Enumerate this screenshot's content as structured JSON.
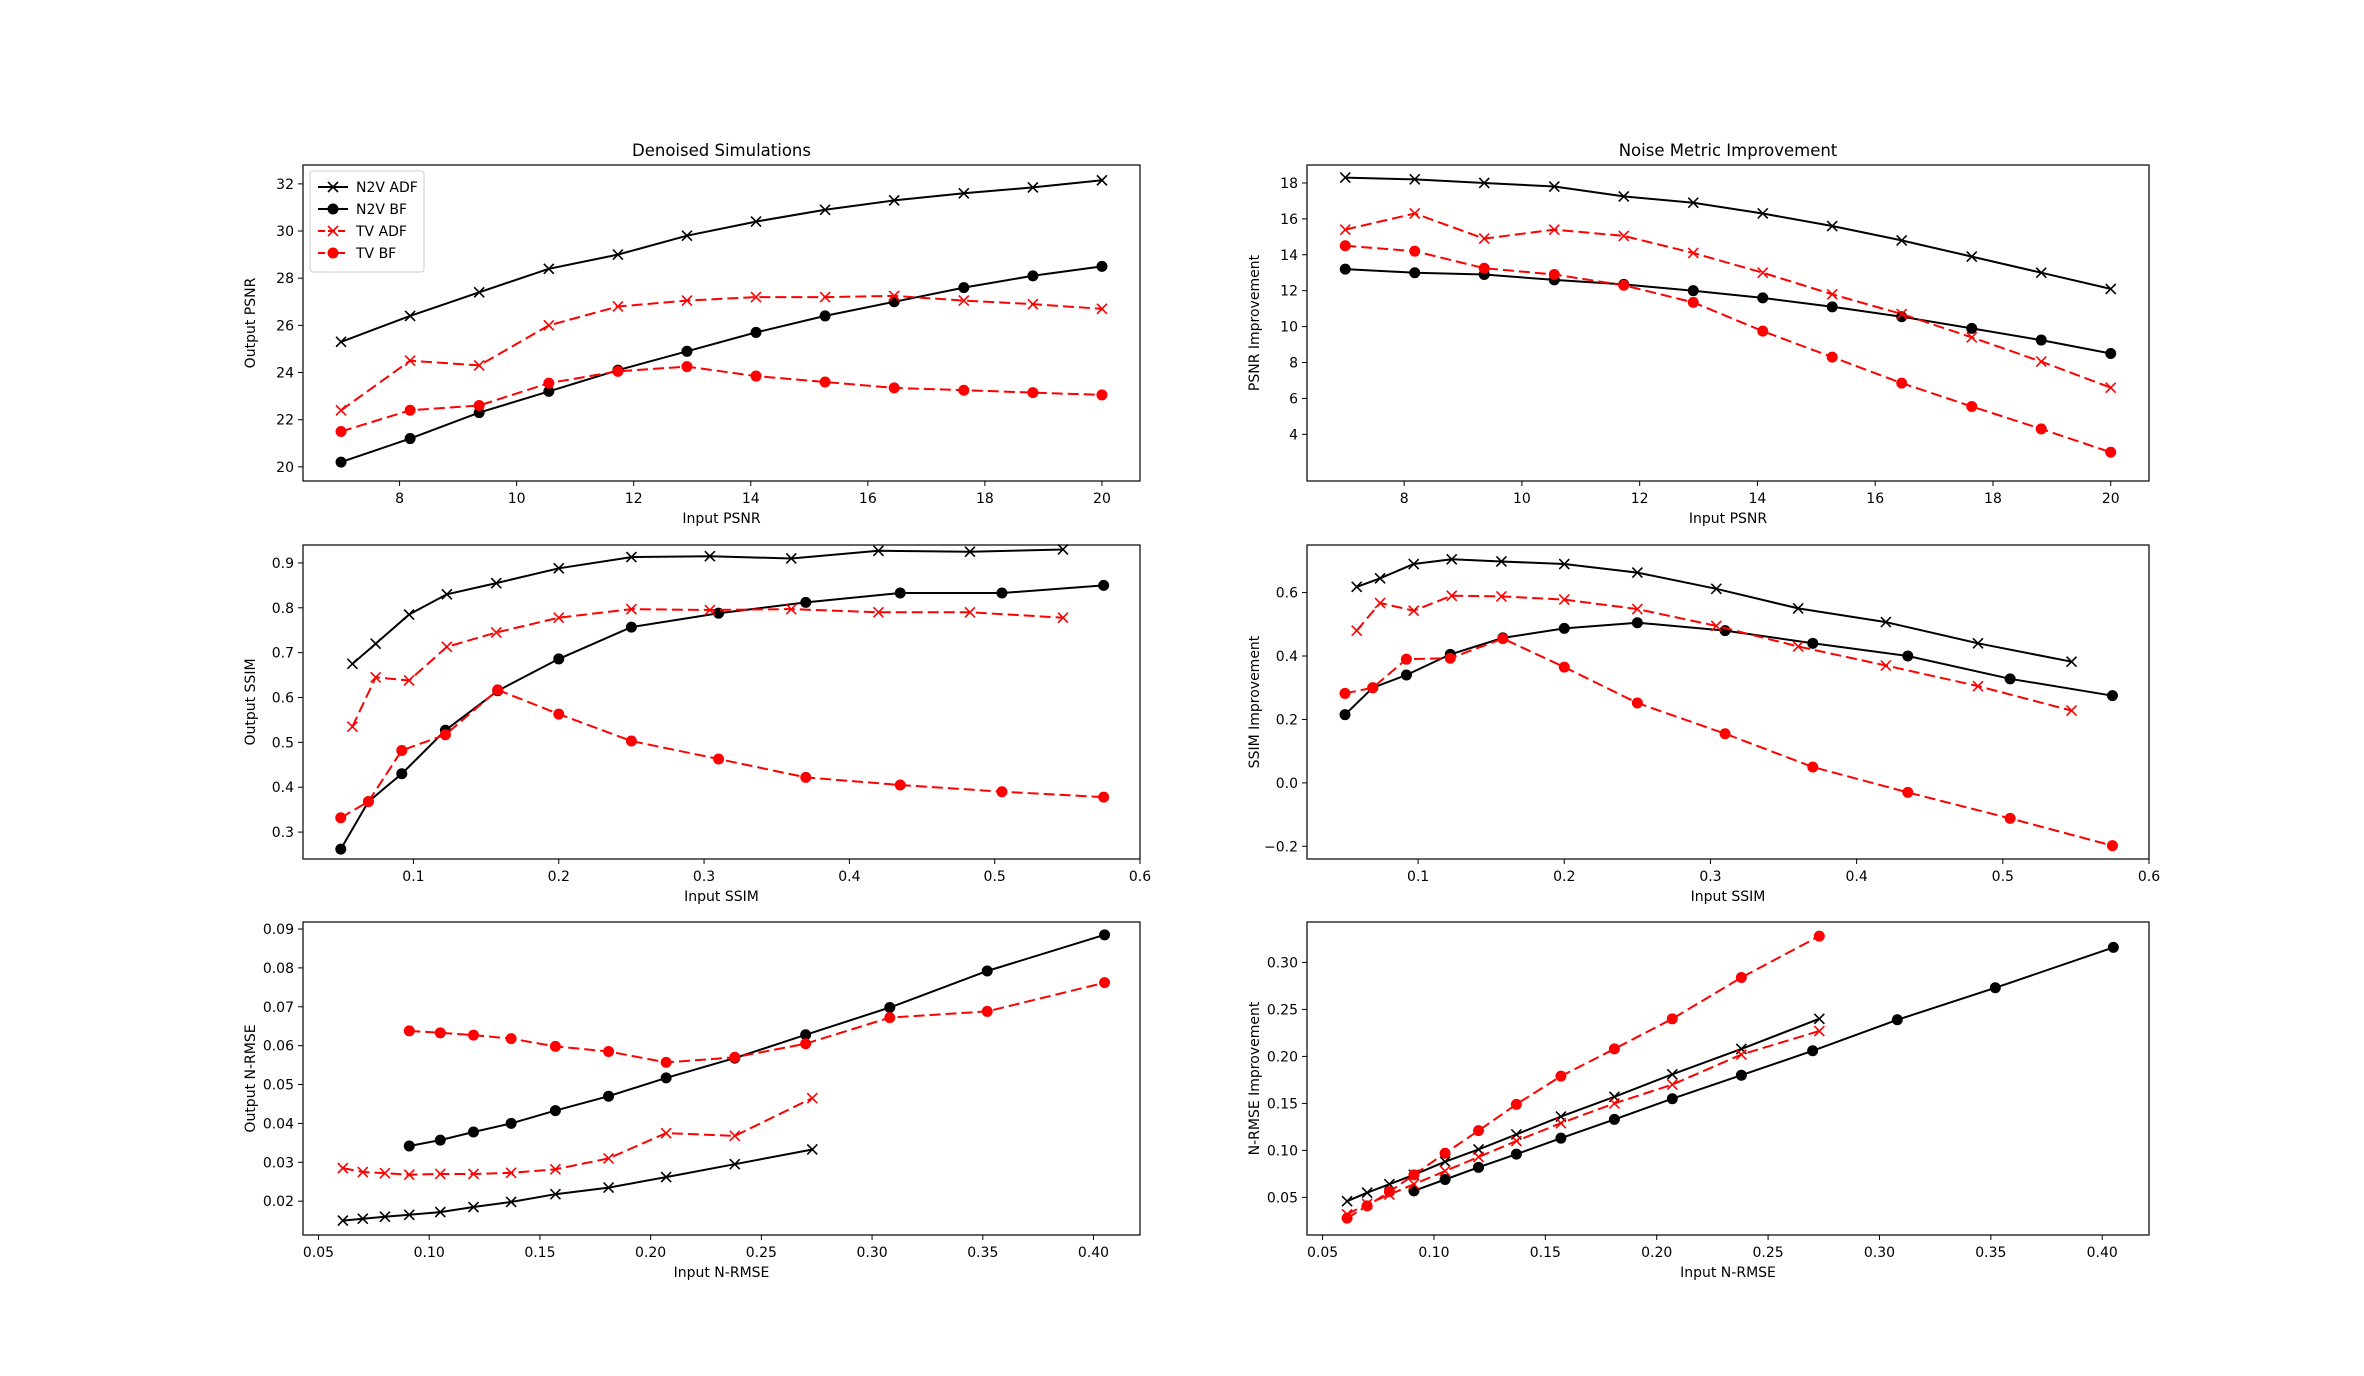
{
  "colors": {
    "n2v": "#000000",
    "tv": "#ff0000"
  },
  "chart_data": [
    {
      "type": "line",
      "title": "Denoised Simulations",
      "xlabel": "Input PSNR",
      "ylabel": "Output PSNR",
      "xlim": [
        6.35,
        20.65
      ],
      "ylim": [
        19.4,
        32.8
      ],
      "xticks": [
        8,
        10,
        12,
        14,
        16,
        18,
        20
      ],
      "yticks": [
        20,
        22,
        24,
        26,
        28,
        30,
        32
      ],
      "legend": "upper-left",
      "series": [
        {
          "name": "N2V ADF",
          "style": "n2v-adf",
          "x": [
            7,
            8.18,
            9.36,
            10.55,
            11.73,
            12.91,
            14.09,
            15.27,
            16.45,
            17.64,
            18.82,
            20
          ],
          "y": [
            25.3,
            26.4,
            27.4,
            28.4,
            29.0,
            29.8,
            30.4,
            30.9,
            31.3,
            31.6,
            31.85,
            32.15
          ]
        },
        {
          "name": "N2V BF",
          "style": "n2v-bf",
          "x": [
            7,
            8.18,
            9.36,
            10.55,
            11.73,
            12.91,
            14.09,
            15.27,
            16.45,
            17.64,
            18.82,
            20
          ],
          "y": [
            20.2,
            21.2,
            22.3,
            23.2,
            24.1,
            24.9,
            25.7,
            26.4,
            27.0,
            27.6,
            28.1,
            28.5
          ]
        },
        {
          "name": "TV ADF",
          "style": "tv-adf",
          "x": [
            7,
            8.18,
            9.36,
            10.55,
            11.73,
            12.91,
            14.09,
            15.27,
            16.45,
            17.64,
            18.82,
            20
          ],
          "y": [
            22.4,
            24.5,
            24.3,
            26.0,
            26.8,
            27.05,
            27.2,
            27.2,
            27.25,
            27.05,
            26.9,
            26.7
          ]
        },
        {
          "name": "TV BF",
          "style": "tv-bf",
          "x": [
            7,
            8.18,
            9.36,
            10.55,
            11.73,
            12.91,
            14.09,
            15.27,
            16.45,
            17.64,
            18.82,
            20
          ],
          "y": [
            21.5,
            22.4,
            22.6,
            23.55,
            24.05,
            24.25,
            23.85,
            23.6,
            23.35,
            23.25,
            23.15,
            23.05
          ]
        }
      ]
    },
    {
      "type": "line",
      "title": "Noise Metric Improvement",
      "xlabel": "Input PSNR",
      "ylabel": "PSNR Improvement",
      "xlim": [
        6.35,
        20.65
      ],
      "ylim": [
        1.4,
        19.0
      ],
      "xticks": [
        8,
        10,
        12,
        14,
        16,
        18,
        20
      ],
      "yticks": [
        4,
        6,
        8,
        10,
        12,
        14,
        16,
        18
      ],
      "series": [
        {
          "name": "N2V ADF",
          "style": "n2v-adf",
          "x": [
            7,
            8.18,
            9.36,
            10.55,
            11.73,
            12.91,
            14.09,
            15.27,
            16.45,
            17.64,
            18.82,
            20
          ],
          "y": [
            18.3,
            18.2,
            18.0,
            17.8,
            17.25,
            16.9,
            16.3,
            15.6,
            14.8,
            13.9,
            13.0,
            12.1
          ]
        },
        {
          "name": "N2V BF",
          "style": "n2v-bf",
          "x": [
            7,
            8.18,
            9.36,
            10.55,
            11.73,
            12.91,
            14.09,
            15.27,
            16.45,
            17.64,
            18.82,
            20
          ],
          "y": [
            13.2,
            13.0,
            12.9,
            12.6,
            12.35,
            12.0,
            11.6,
            11.1,
            10.55,
            9.9,
            9.25,
            8.5
          ]
        },
        {
          "name": "TV ADF",
          "style": "tv-adf",
          "x": [
            7,
            8.18,
            9.36,
            10.55,
            11.73,
            12.91,
            14.09,
            15.27,
            16.45,
            17.64,
            18.82,
            20
          ],
          "y": [
            15.4,
            16.3,
            14.9,
            15.4,
            15.05,
            14.1,
            13.0,
            11.8,
            10.7,
            9.4,
            8.05,
            6.6
          ]
        },
        {
          "name": "TV BF",
          "style": "tv-bf",
          "x": [
            7,
            8.18,
            9.36,
            10.55,
            11.73,
            12.91,
            14.09,
            15.27,
            16.45,
            17.64,
            18.82,
            20
          ],
          "y": [
            14.5,
            14.2,
            13.25,
            12.9,
            12.3,
            11.35,
            9.75,
            8.3,
            6.85,
            5.55,
            4.3,
            3.0
          ]
        }
      ]
    },
    {
      "type": "line",
      "title": "",
      "xlabel": "Input SSIM",
      "ylabel": "Output SSIM",
      "xlim": [
        0.024,
        0.6
      ],
      "ylim": [
        0.24,
        0.94
      ],
      "xticks": [
        0.1,
        0.2,
        0.3,
        0.4,
        0.5,
        0.6
      ],
      "yticks": [
        0.3,
        0.4,
        0.5,
        0.6,
        0.7,
        0.8,
        0.9
      ],
      "series": [
        {
          "name": "N2V ADF",
          "style": "n2v-adf",
          "x": [
            0.058,
            0.074,
            0.097,
            0.123,
            0.157,
            0.2,
            0.25,
            0.304,
            0.36,
            0.42,
            0.483,
            0.547
          ],
          "y": [
            0.675,
            0.72,
            0.785,
            0.83,
            0.855,
            0.888,
            0.913,
            0.915,
            0.91,
            0.927,
            0.925,
            0.93
          ]
        },
        {
          "name": "N2V BF",
          "style": "n2v-bf",
          "x": [
            0.05,
            0.069,
            0.092,
            0.122,
            0.158,
            0.2,
            0.25,
            0.31,
            0.37,
            0.435,
            0.505,
            0.575
          ],
          "y": [
            0.262,
            0.368,
            0.43,
            0.527,
            0.615,
            0.686,
            0.757,
            0.788,
            0.812,
            0.833,
            0.833,
            0.85
          ]
        },
        {
          "name": "TV ADF",
          "style": "tv-adf",
          "x": [
            0.058,
            0.074,
            0.097,
            0.123,
            0.157,
            0.2,
            0.25,
            0.304,
            0.36,
            0.42,
            0.483,
            0.547
          ],
          "y": [
            0.535,
            0.645,
            0.638,
            0.713,
            0.745,
            0.778,
            0.797,
            0.795,
            0.797,
            0.79,
            0.79,
            0.778
          ]
        },
        {
          "name": "TV BF",
          "style": "tv-bf",
          "x": [
            0.05,
            0.069,
            0.092,
            0.122,
            0.158,
            0.2,
            0.25,
            0.31,
            0.37,
            0.435,
            0.505,
            0.575
          ],
          "y": [
            0.332,
            0.368,
            0.482,
            0.517,
            0.617,
            0.563,
            0.503,
            0.463,
            0.422,
            0.405,
            0.39,
            0.378
          ]
        }
      ]
    },
    {
      "type": "line",
      "title": "",
      "xlabel": "Input SSIM",
      "ylabel": "SSIM Improvement",
      "xlim": [
        0.024,
        0.6
      ],
      "ylim": [
        -0.24,
        0.75
      ],
      "xticks": [
        0.1,
        0.2,
        0.3,
        0.4,
        0.5,
        0.6
      ],
      "yticks": [
        -0.2,
        0.0,
        0.2,
        0.4,
        0.6
      ],
      "series": [
        {
          "name": "N2V ADF",
          "style": "n2v-adf",
          "x": [
            0.058,
            0.074,
            0.097,
            0.123,
            0.157,
            0.2,
            0.25,
            0.304,
            0.36,
            0.42,
            0.483,
            0.547
          ],
          "y": [
            0.618,
            0.645,
            0.69,
            0.705,
            0.698,
            0.69,
            0.663,
            0.612,
            0.55,
            0.507,
            0.44,
            0.382
          ]
        },
        {
          "name": "N2V BF",
          "style": "n2v-bf",
          "x": [
            0.05,
            0.069,
            0.092,
            0.122,
            0.158,
            0.2,
            0.25,
            0.31,
            0.37,
            0.435,
            0.505,
            0.575
          ],
          "y": [
            0.215,
            0.3,
            0.34,
            0.405,
            0.457,
            0.487,
            0.505,
            0.48,
            0.44,
            0.4,
            0.328,
            0.275
          ]
        },
        {
          "name": "TV ADF",
          "style": "tv-adf",
          "x": [
            0.058,
            0.074,
            0.097,
            0.123,
            0.157,
            0.2,
            0.25,
            0.304,
            0.36,
            0.42,
            0.483,
            0.547
          ],
          "y": [
            0.48,
            0.567,
            0.543,
            0.59,
            0.588,
            0.578,
            0.548,
            0.495,
            0.43,
            0.37,
            0.305,
            0.228
          ]
        },
        {
          "name": "TV BF",
          "style": "tv-bf",
          "x": [
            0.05,
            0.069,
            0.092,
            0.122,
            0.158,
            0.2,
            0.25,
            0.31,
            0.37,
            0.435,
            0.505,
            0.575
          ],
          "y": [
            0.282,
            0.3,
            0.39,
            0.393,
            0.455,
            0.365,
            0.252,
            0.155,
            0.05,
            -0.03,
            -0.112,
            -0.198
          ]
        }
      ]
    },
    {
      "type": "line",
      "title": "",
      "xlabel": "Input N-RMSE",
      "ylabel": "Output N-RMSE",
      "xlim": [
        0.043,
        0.421
      ],
      "ylim": [
        0.0113,
        0.0918
      ],
      "xticks": [
        0.05,
        0.1,
        0.15,
        0.2,
        0.25,
        0.3,
        0.35,
        0.4
      ],
      "yticks": [
        0.02,
        0.03,
        0.04,
        0.05,
        0.06,
        0.07,
        0.08,
        0.09
      ],
      "series": [
        {
          "name": "N2V ADF",
          "style": "n2v-adf",
          "x": [
            0.061,
            0.07,
            0.08,
            0.091,
            0.105,
            0.12,
            0.137,
            0.157,
            0.181,
            0.207,
            0.238,
            0.273
          ],
          "y": [
            0.015,
            0.0155,
            0.016,
            0.0165,
            0.0172,
            0.0185,
            0.0198,
            0.0218,
            0.0235,
            0.0262,
            0.0295,
            0.0333
          ]
        },
        {
          "name": "N2V BF",
          "style": "n2v-bf",
          "x": [
            0.091,
            0.105,
            0.12,
            0.137,
            0.157,
            0.181,
            0.207,
            0.238,
            0.27,
            0.308,
            0.352,
            0.405
          ],
          "y": [
            0.0342,
            0.0357,
            0.0378,
            0.04,
            0.0433,
            0.047,
            0.0517,
            0.0568,
            0.0628,
            0.0698,
            0.0792,
            0.0885
          ]
        },
        {
          "name": "TV ADF",
          "style": "tv-adf",
          "x": [
            0.061,
            0.07,
            0.08,
            0.091,
            0.105,
            0.12,
            0.137,
            0.157,
            0.181,
            0.207,
            0.238,
            0.273
          ],
          "y": [
            0.0285,
            0.0275,
            0.0272,
            0.0268,
            0.027,
            0.027,
            0.0273,
            0.0282,
            0.031,
            0.0375,
            0.0368,
            0.0465
          ]
        },
        {
          "name": "TV BF",
          "style": "tv-bf",
          "x": [
            0.091,
            0.105,
            0.12,
            0.137,
            0.157,
            0.181,
            0.207,
            0.238,
            0.27,
            0.308,
            0.352,
            0.405
          ],
          "y": [
            0.0638,
            0.0633,
            0.0627,
            0.0618,
            0.0598,
            0.0585,
            0.0557,
            0.057,
            0.0605,
            0.0672,
            0.0688,
            0.0762
          ]
        }
      ]
    },
    {
      "type": "line",
      "title": "",
      "xlabel": "Input N-RMSE",
      "ylabel": "N-RMSE Improvement",
      "xlim": [
        0.043,
        0.421
      ],
      "ylim": [
        0.01,
        0.343
      ],
      "xticks": [
        0.05,
        0.1,
        0.15,
        0.2,
        0.25,
        0.3,
        0.35,
        0.4
      ],
      "yticks": [
        0.05,
        0.1,
        0.15,
        0.2,
        0.25,
        0.3
      ],
      "series": [
        {
          "name": "N2V ADF",
          "style": "n2v-adf",
          "x": [
            0.061,
            0.07,
            0.08,
            0.091,
            0.105,
            0.12,
            0.137,
            0.157,
            0.181,
            0.207,
            0.238,
            0.273
          ],
          "y": [
            0.046,
            0.055,
            0.064,
            0.074,
            0.088,
            0.101,
            0.117,
            0.136,
            0.157,
            0.181,
            0.208,
            0.24
          ]
        },
        {
          "name": "N2V BF",
          "style": "n2v-bf",
          "x": [
            0.091,
            0.105,
            0.12,
            0.137,
            0.157,
            0.181,
            0.207,
            0.238,
            0.27,
            0.308,
            0.352,
            0.405
          ],
          "y": [
            0.057,
            0.069,
            0.082,
            0.096,
            0.113,
            0.133,
            0.155,
            0.18,
            0.206,
            0.239,
            0.273,
            0.316
          ]
        },
        {
          "name": "TV ADF",
          "style": "tv-adf",
          "x": [
            0.061,
            0.07,
            0.08,
            0.091,
            0.105,
            0.12,
            0.137,
            0.157,
            0.181,
            0.207,
            0.238,
            0.273
          ],
          "y": [
            0.032,
            0.043,
            0.053,
            0.064,
            0.078,
            0.093,
            0.11,
            0.129,
            0.15,
            0.17,
            0.202,
            0.227
          ]
        },
        {
          "name": "TV BF",
          "style": "tv-bf",
          "x": [
            0.061,
            0.07,
            0.08,
            0.091,
            0.105,
            0.12,
            0.137,
            0.157,
            0.181,
            0.207,
            0.238,
            0.273
          ],
          "y": [
            0.028,
            0.041,
            0.056,
            0.074,
            0.097,
            0.121,
            0.149,
            0.179,
            0.208,
            0.24,
            0.284,
            0.328
          ]
        }
      ]
    }
  ]
}
